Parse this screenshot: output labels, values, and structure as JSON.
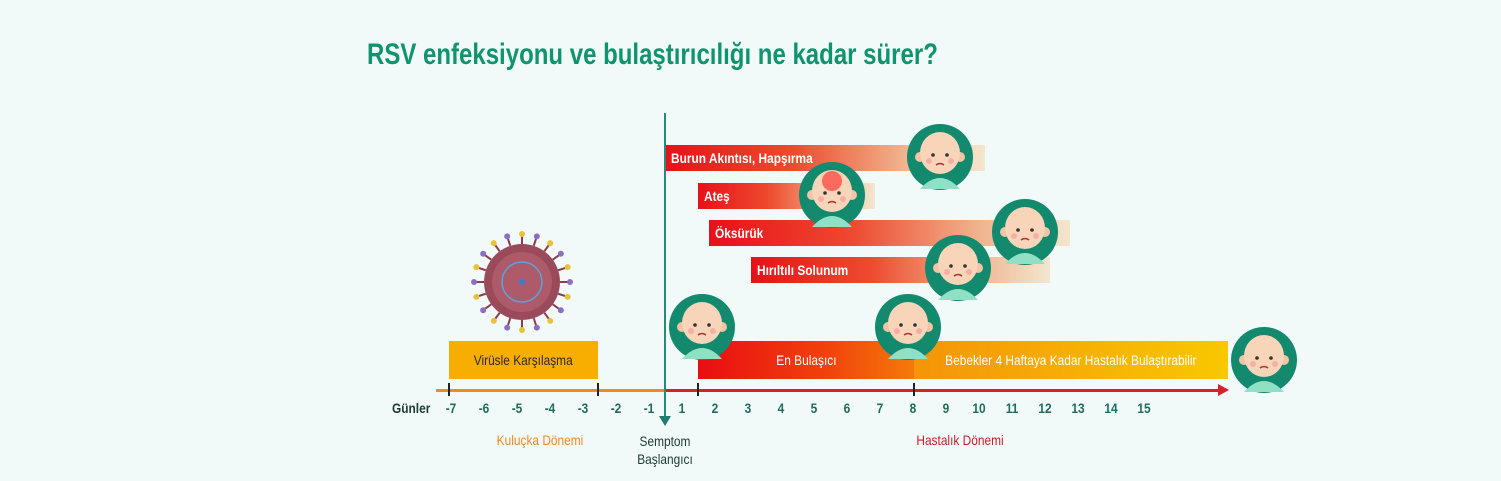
{
  "title": "RSV enfeksiyonu ve bulaştırıcılığı ne kadar sürer?",
  "symptoms": [
    {
      "label": "Burun Akıntısı, Hapşırma"
    },
    {
      "label": "Ateş"
    },
    {
      "label": "Öksürük"
    },
    {
      "label": "Hırıltılı Solunum"
    }
  ],
  "bars": {
    "virus_exposure": "Virüsle Karşılaşma",
    "most_contagious": "En Bulaşıcı",
    "late_contagious": "Bebekler 4 Haftaya Kadar Hastalık Bulaştırabilir"
  },
  "axis": {
    "label": "Günler",
    "days": [
      -7,
      -6,
      -5,
      -4,
      -3,
      -2,
      -1,
      1,
      2,
      3,
      4,
      5,
      6,
      7,
      8,
      9,
      10,
      11,
      12,
      13,
      14,
      15
    ]
  },
  "phases": {
    "incubation": "Kuluçka Dönemi",
    "onset_line1": "Semptom",
    "onset_line2": "Başlangıcı",
    "illness": "Hastalık Dönemi"
  },
  "colors": {
    "title": "#10936f",
    "incubation": "#f08a1c",
    "illness": "#d6202a",
    "background": "#f1faf8"
  }
}
